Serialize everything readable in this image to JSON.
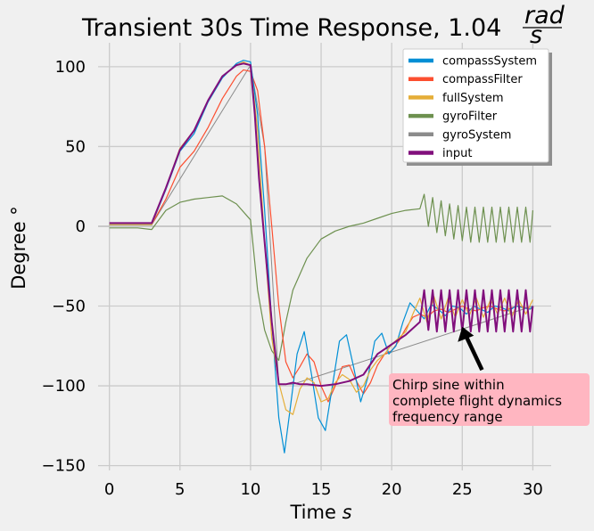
{
  "chart_data": {
    "type": "line",
    "title": "Transient 30s Time Response, 1.04",
    "title_fraction": {
      "numerator": "rad",
      "denominator": "s"
    },
    "xlabel": "Time",
    "xlabel_unit": "s",
    "ylabel": "Degree °",
    "xlim": [
      -0.8,
      31.3
    ],
    "ylim": [
      -153,
      115
    ],
    "xticks": [
      0,
      5,
      10,
      15,
      20,
      25,
      30
    ],
    "yticks": [
      100,
      50,
      0,
      -50,
      -100,
      -150
    ],
    "grid": true,
    "legend_position": "top-right",
    "annotation": {
      "lines": [
        "Chirp sine within",
        "complete flight dynamics",
        "frequency range"
      ],
      "arrow_from": [
        26.4,
        -90
      ],
      "arrow_to": [
        25.0,
        -63
      ],
      "box_color": "#ffb6c1"
    },
    "series": [
      {
        "name": "compassSystem",
        "color": "#008fd5",
        "x": [
          0,
          3,
          4,
          5,
          6,
          7,
          8,
          9,
          9.5,
          10,
          10.5,
          11,
          11.5,
          12,
          12.4,
          12.8,
          13.3,
          13.8,
          14.3,
          14.8,
          15.3,
          15.8,
          16.3,
          16.8,
          17.3,
          17.8,
          18.3,
          18.8,
          19.3,
          19.8,
          20.3,
          20.8,
          21.3,
          21.8,
          22.3,
          22.8,
          23.3,
          23.8,
          24.3,
          24.8,
          25.3,
          25.8,
          26.3,
          26.8,
          27.3,
          27.8,
          28.3,
          28.8,
          29.3,
          29.8,
          30
        ],
        "y": [
          1,
          1,
          23,
          47,
          58,
          78,
          93,
          102,
          104,
          103,
          70,
          10,
          -60,
          -120,
          -142,
          -115,
          -80,
          -66,
          -92,
          -120,
          -128,
          -100,
          -72,
          -68,
          -88,
          -110,
          -95,
          -72,
          -67,
          -80,
          -75,
          -60,
          -48,
          -53,
          -58,
          -49,
          -52,
          -56,
          -50,
          -51,
          -55,
          -50,
          -52,
          -54,
          -50,
          -51,
          -53,
          -50,
          -51,
          -52,
          -50
        ]
      },
      {
        "name": "compassFilter",
        "color": "#fc4f30",
        "x": [
          0,
          3,
          4,
          5,
          6,
          7,
          8,
          9,
          9.5,
          10,
          10.5,
          11,
          11.5,
          12,
          12.5,
          13,
          13.5,
          14,
          14.5,
          15,
          15.5,
          16,
          16.5,
          17,
          17.5,
          18,
          18.5,
          19,
          19.5,
          20,
          20.5,
          21,
          21.5,
          22,
          22.5,
          23,
          23.5,
          24,
          24.5,
          25,
          25.5,
          26,
          26.5,
          27,
          27.5,
          28,
          28.5,
          29,
          29.5,
          30
        ],
        "y": [
          1,
          1,
          17,
          37,
          47,
          62,
          80,
          94,
          98,
          97,
          85,
          50,
          0,
          -50,
          -85,
          -95,
          -88,
          -80,
          -85,
          -100,
          -110,
          -100,
          -88,
          -87,
          -97,
          -105,
          -98,
          -87,
          -80,
          -78,
          -72,
          -64,
          -57,
          -55,
          -57,
          -53,
          -52,
          -54,
          -52,
          -50,
          -52,
          -53,
          -51,
          -50,
          -52,
          -53,
          -51,
          -50,
          -51,
          -52
        ]
      },
      {
        "name": "fullSystem",
        "color": "#e5ae38",
        "x": [
          0,
          3,
          4,
          5,
          6,
          7,
          8,
          9,
          9.5,
          10,
          10.5,
          11,
          11.5,
          12,
          12.5,
          13,
          13.5,
          14,
          14.5,
          15,
          15.5,
          16,
          16.5,
          17,
          17.5,
          18,
          18.5,
          19,
          19.5,
          20,
          20.5,
          21,
          21.5,
          22,
          22.5,
          23,
          23.5,
          24,
          24.5,
          25,
          25.5,
          26,
          26.5,
          27,
          27.5,
          28,
          28.5,
          29,
          29.5,
          30
        ],
        "y": [
          1,
          1,
          24,
          49,
          60,
          79,
          94,
          101,
          103,
          101,
          60,
          -10,
          -70,
          -98,
          -115,
          -118,
          -102,
          -95,
          -98,
          -110,
          -108,
          -98,
          -93,
          -96,
          -104,
          -100,
          -90,
          -84,
          -80,
          -74,
          -70,
          -66,
          -55,
          -45,
          -60,
          -44,
          -58,
          -45,
          -57,
          -46,
          -56,
          -45,
          -57,
          -46,
          -55,
          -45,
          -57,
          -46,
          -55,
          -46
        ]
      },
      {
        "name": "gyroFilter",
        "color": "#6d904f",
        "x": [
          0,
          2,
          3,
          4,
          5,
          6,
          7,
          8,
          9,
          10,
          10.5,
          11,
          11.5,
          12,
          12.5,
          13,
          14,
          15,
          16,
          17,
          18,
          19,
          20,
          21,
          22,
          22.3,
          22.6,
          22.9,
          23.2,
          23.5,
          23.8,
          24.1,
          24.4,
          24.7,
          25.0,
          25.3,
          25.6,
          25.9,
          26.2,
          26.5,
          26.8,
          27.1,
          27.4,
          27.7,
          28.0,
          28.3,
          28.6,
          28.9,
          29.2,
          29.5,
          29.8,
          30
        ],
        "y": [
          -1,
          -1,
          -2,
          10,
          15,
          17,
          18,
          19,
          14,
          4,
          -40,
          -65,
          -78,
          -84,
          -60,
          -40,
          -20,
          -8,
          -3,
          0,
          2,
          5,
          8,
          10,
          11,
          20,
          0,
          18,
          -4,
          16,
          -6,
          14,
          -8,
          13,
          -9,
          12,
          -10,
          12,
          -10,
          12,
          -10,
          12,
          -10,
          12,
          -10,
          12,
          -10,
          12,
          -10,
          12,
          -10,
          10
        ]
      },
      {
        "name": "gyroSystem",
        "color": "#8b8b8b",
        "x": [
          0,
          3,
          10,
          11,
          12,
          13,
          30
        ],
        "y": [
          1,
          1,
          101,
          50,
          -99,
          -99,
          -50
        ]
      },
      {
        "name": "input",
        "color": "#810f7c",
        "x": [
          0,
          3,
          4,
          5,
          6,
          7,
          8,
          9,
          9.5,
          10,
          10.3,
          10.6,
          11,
          11.5,
          12,
          12.5,
          13,
          13.5,
          14,
          15,
          16,
          17,
          18,
          19,
          20,
          21,
          22,
          22.3,
          22.6,
          22.9,
          23.2,
          23.5,
          23.8,
          24.1,
          24.4,
          24.7,
          25.0,
          25.3,
          25.6,
          25.9,
          26.2,
          26.5,
          26.8,
          27.1,
          27.4,
          27.7,
          28.0,
          28.3,
          28.6,
          28.9,
          29.2,
          29.5,
          29.8,
          30
        ],
        "y": [
          2,
          2,
          24,
          48,
          60,
          79,
          94,
          101,
          102,
          101,
          70,
          30,
          -10,
          -60,
          -99,
          -99,
          -98,
          -99,
          -99,
          -100,
          -99,
          -97,
          -93,
          -80,
          -74,
          -68,
          -60,
          -40,
          -65,
          -40,
          -66,
          -40,
          -66,
          -40,
          -66,
          -40,
          -66,
          -40,
          -66,
          -40,
          -66,
          -40,
          -66,
          -40,
          -66,
          -40,
          -66,
          -40,
          -66,
          -40,
          -66,
          -40,
          -66,
          -50
        ]
      }
    ]
  }
}
